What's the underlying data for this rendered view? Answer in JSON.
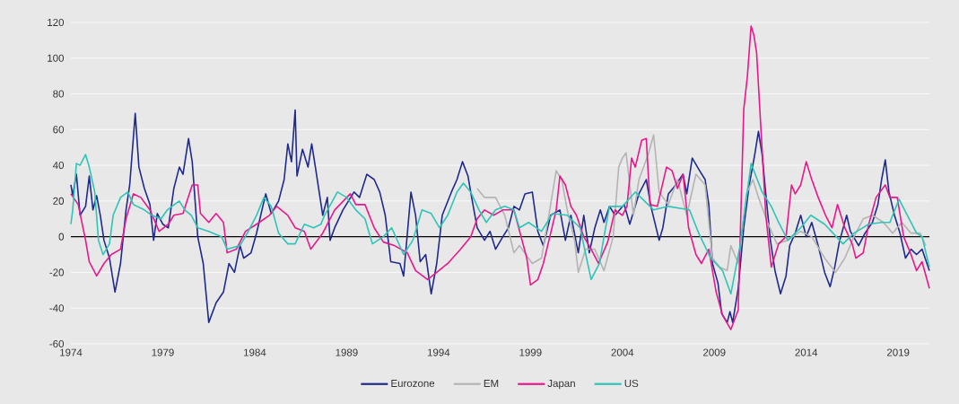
{
  "chart_data": {
    "type": "line",
    "xlim": [
      1974,
      2020.7
    ],
    "ylim": [
      -60,
      120
    ],
    "xticks": [
      1974,
      1979,
      1984,
      1989,
      1994,
      1999,
      2004,
      2009,
      2014,
      2019
    ],
    "yticks": [
      -60,
      -40,
      -20,
      0,
      20,
      40,
      60,
      80,
      100,
      120
    ],
    "grid": "y",
    "legend": "bottom",
    "marker": "none",
    "line_style": "solid",
    "ref_lines": [
      {
        "axis": "y",
        "value": 0,
        "color": "#000000"
      }
    ],
    "series": [
      {
        "name": "Eurozone",
        "color": "#1f2a8a",
        "x": [
          1974.0,
          1974.1,
          1974.3,
          1974.5,
          1974.8,
          1975.0,
          1975.2,
          1975.4,
          1975.6,
          1975.8,
          1976.1,
          1976.4,
          1976.7,
          1977.0,
          1977.2,
          1977.5,
          1977.7,
          1978.0,
          1978.3,
          1978.5,
          1978.7,
          1979.0,
          1979.3,
          1979.6,
          1979.9,
          1980.1,
          1980.4,
          1980.6,
          1980.9,
          1981.2,
          1981.5,
          1981.9,
          1982.3,
          1982.6,
          1982.9,
          1983.2,
          1983.4,
          1983.8,
          1984.1,
          1984.6,
          1984.9,
          1985.3,
          1985.6,
          1985.8,
          1986.0,
          1986.2,
          1986.3,
          1986.6,
          1986.9,
          1987.1,
          1987.3,
          1987.7,
          1987.95,
          1988.1,
          1988.35,
          1988.8,
          1989.4,
          1989.7,
          1990.1,
          1990.5,
          1990.8,
          1991.1,
          1991.4,
          1991.9,
          1992.1,
          1992.5,
          1992.75,
          1993.0,
          1993.3,
          1993.6,
          1993.9,
          1994.2,
          1994.7,
          1995.0,
          1995.3,
          1995.6,
          1995.8,
          1996.1,
          1996.5,
          1996.8,
          1997.1,
          1997.5,
          1997.8,
          1998.1,
          1998.4,
          1998.7,
          1999.1,
          1999.4,
          1999.7,
          2000.1,
          2000.6,
          2000.9,
          2001.2,
          2001.6,
          2001.9,
          2002.2,
          2002.5,
          2002.8,
          2003.0,
          2003.3,
          2003.6,
          2004.1,
          2004.4,
          2004.9,
          2005.3,
          2005.55,
          2006.0,
          2006.2,
          2006.5,
          2006.9,
          2007.3,
          2007.5,
          2007.8,
          2008.2,
          2008.5,
          2008.7,
          2008.9,
          2009.2,
          2009.4,
          2009.7,
          2009.85,
          2010.0,
          2010.3,
          2010.6,
          2010.9,
          2011.2,
          2011.4,
          2011.6,
          2011.8,
          2012.05,
          2012.3,
          2012.6,
          2012.9,
          2013.1,
          2013.4,
          2013.7,
          2014.0,
          2014.3,
          2014.65,
          2015.0,
          2015.3,
          2015.55,
          2015.8,
          2016.2,
          2016.4,
          2016.85,
          2017.2,
          2017.6,
          2017.9,
          2018.1,
          2018.3,
          2018.5,
          2018.8,
          2019.1,
          2019.4,
          2019.7,
          2020.0,
          2020.3,
          2020.7
        ],
        "values": [
          29,
          23,
          35,
          12,
          17,
          34,
          15,
          23,
          12,
          -2,
          -12,
          -31,
          -15,
          15,
          29,
          69,
          39,
          27,
          18,
          -2,
          13,
          7,
          5,
          27,
          39,
          35,
          55,
          42,
          0,
          -15,
          -48,
          -37,
          -31,
          -15,
          -20,
          -5,
          -12,
          -9,
          2,
          24,
          13,
          20,
          32,
          52,
          42,
          71,
          34,
          49,
          39,
          52,
          39,
          12,
          22,
          -2,
          5,
          15,
          25,
          22,
          35,
          32,
          25,
          12,
          -14,
          -15,
          -22,
          25,
          12,
          -14,
          -10,
          -32,
          -15,
          12,
          25,
          32,
          42,
          34,
          22,
          5,
          -2,
          3,
          -7,
          0,
          5,
          17,
          15,
          24,
          25,
          3,
          -5,
          12,
          15,
          -2,
          12,
          -9,
          12,
          -9,
          5,
          15,
          8,
          17,
          12,
          18,
          7,
          24,
          32,
          17,
          -2,
          5,
          24,
          29,
          35,
          24,
          44,
          37,
          32,
          18,
          -15,
          -26,
          -43,
          -48,
          -42,
          -48,
          -29,
          5,
          29,
          46,
          59,
          46,
          24,
          -2,
          -19,
          -32,
          -22,
          -5,
          2,
          12,
          0,
          8,
          -5,
          -20,
          -28,
          -17,
          -3,
          12,
          3,
          -5,
          2,
          8,
          18,
          32,
          43,
          25,
          12,
          2,
          -12,
          -7,
          -10,
          -7,
          -19
        ]
      },
      {
        "name": "EM",
        "color": "#b4b4b4",
        "x": [
          1996.1,
          1996.5,
          1997.1,
          1997.6,
          1998.1,
          1998.4,
          1999.1,
          1999.6,
          2000.0,
          2000.4,
          2000.7,
          2001.0,
          2001.4,
          2001.6,
          2002.0,
          2002.5,
          2003.0,
          2003.5,
          2003.8,
          2004.0,
          2004.2,
          2004.6,
          2004.9,
          2005.4,
          2005.7,
          2006.0,
          2006.5,
          2007.0,
          2007.5,
          2008.0,
          2008.5,
          2008.9,
          2009.3,
          2009.7,
          2009.9,
          2010.3,
          2010.75,
          2011.1,
          2011.4,
          2011.9,
          2012.4,
          2013.0,
          2013.7,
          2014.3,
          2015.0,
          2015.6,
          2016.1,
          2016.6,
          2017.1,
          2017.6,
          2018.2,
          2018.7,
          2019.2,
          2019.7,
          2020.2,
          2020.5
        ],
        "values": [
          27,
          22,
          22,
          12,
          -9,
          -5,
          -15,
          -12,
          12,
          37,
          32,
          15,
          -2,
          -20,
          -7,
          -7,
          -19,
          0,
          39,
          44,
          47,
          12,
          32,
          46,
          57,
          25,
          18,
          32,
          12,
          35,
          29,
          -12,
          -17,
          -19,
          -5,
          -15,
          24,
          32,
          22,
          8,
          -4,
          -2,
          3,
          0,
          -12,
          -20,
          -12,
          0,
          10,
          12,
          8,
          2,
          8,
          2,
          2,
          -5
        ]
      },
      {
        "name": "Japan",
        "color": "#e6198c",
        "x": [
          1974.0,
          1974.4,
          1974.8,
          1975.0,
          1975.4,
          1975.8,
          1976.2,
          1976.7,
          1977.0,
          1977.4,
          1977.8,
          1978.3,
          1978.8,
          1979.3,
          1979.6,
          1980.1,
          1980.6,
          1980.9,
          1981.05,
          1981.5,
          1981.9,
          1982.3,
          1982.5,
          1983.0,
          1983.5,
          1984.1,
          1984.8,
          1985.2,
          1985.8,
          1986.2,
          1986.7,
          1987.05,
          1987.7,
          1988.35,
          1989.2,
          1989.5,
          1990.0,
          1990.5,
          1991.0,
          1991.6,
          1992.3,
          1992.75,
          1993.4,
          1993.9,
          1994.5,
          1995.2,
          1995.75,
          1996.1,
          1996.5,
          1997.0,
          1997.5,
          1998.1,
          1998.8,
          1999.0,
          1999.4,
          1999.7,
          2000.1,
          2000.4,
          2000.6,
          2000.9,
          2001.2,
          2001.5,
          2001.9,
          2002.3,
          2002.7,
          2003.2,
          2003.6,
          2004.0,
          2004.25,
          2004.5,
          2004.7,
          2005.05,
          2005.3,
          2005.5,
          2005.9,
          2006.4,
          2006.7,
          2007.0,
          2007.3,
          2007.6,
          2008.0,
          2008.3,
          2008.7,
          2009.1,
          2009.45,
          2009.9,
          2010.3,
          2010.6,
          2010.8,
          2011.0,
          2011.15,
          2011.3,
          2011.6,
          2011.8,
          2012.1,
          2012.5,
          2012.9,
          2013.2,
          2013.4,
          2013.7,
          2014.0,
          2014.3,
          2014.65,
          2015.05,
          2015.4,
          2015.7,
          2016.1,
          2016.5,
          2016.7,
          2017.1,
          2017.4,
          2017.8,
          2018.3,
          2018.55,
          2018.95,
          2019.3,
          2019.7,
          2020.0,
          2020.3,
          2020.7
        ],
        "values": [
          24,
          18,
          -2,
          -14,
          -22,
          -15,
          -10,
          -7,
          10,
          24,
          22,
          15,
          3,
          7,
          12,
          13,
          29,
          29,
          13,
          8,
          13,
          8,
          -9,
          -7,
          3,
          7,
          12,
          17,
          12,
          5,
          3,
          -7,
          2,
          15,
          24,
          18,
          18,
          5,
          -3,
          -5,
          -9,
          -19,
          -24,
          -20,
          -15,
          -7,
          0,
          10,
          15,
          12,
          15,
          15,
          -12,
          -27,
          -24,
          -15,
          2,
          15,
          34,
          29,
          17,
          12,
          0,
          -7,
          -15,
          -3,
          15,
          12,
          17,
          44,
          39,
          54,
          55,
          18,
          17,
          39,
          37,
          27,
          35,
          5,
          -10,
          -15,
          -7,
          -31,
          -44,
          -52,
          -41,
          71,
          90,
          118,
          113,
          103,
          49,
          12,
          -17,
          -4,
          0,
          29,
          24,
          29,
          42,
          32,
          22,
          12,
          5,
          18,
          5,
          -4,
          -12,
          -9,
          7,
          22,
          29,
          22,
          22,
          0,
          -10,
          -19,
          -14,
          -29
        ]
      },
      {
        "name": "US",
        "color": "#2ec4b6",
        "x": [
          1974.0,
          1974.1,
          1974.3,
          1974.5,
          1974.8,
          1975.0,
          1975.3,
          1975.5,
          1975.75,
          1976.1,
          1976.3,
          1976.7,
          1977.1,
          1977.4,
          1978.0,
          1978.4,
          1978.9,
          1979.25,
          1979.5,
          1979.9,
          1980.2,
          1980.55,
          1980.9,
          1981.5,
          1982.2,
          1982.5,
          1983.2,
          1983.6,
          1984.1,
          1984.5,
          1984.9,
          1985.3,
          1985.8,
          1986.2,
          1986.7,
          1987.2,
          1987.6,
          1987.8,
          1988.5,
          1989.0,
          1989.5,
          1990.0,
          1990.4,
          1991.0,
          1991.45,
          1992.1,
          1992.6,
          1993.1,
          1993.6,
          1994.05,
          1994.5,
          1995.0,
          1995.35,
          1995.75,
          1996.2,
          1996.6,
          1997.1,
          1997.6,
          1998.1,
          1998.4,
          1998.9,
          1999.6,
          2000.2,
          2001.0,
          2001.7,
          2002.3,
          2002.75,
          2003.0,
          2003.3,
          2004.0,
          2004.7,
          2005.7,
          2006.5,
          2007.65,
          2008.15,
          2008.8,
          2009.45,
          2009.9,
          2010.4,
          2011.0,
          2011.6,
          2012.1,
          2012.5,
          2013.0,
          2013.7,
          2014.25,
          2015.0,
          2016.0,
          2016.6,
          2017.4,
          2018.1,
          2018.55,
          2019.05,
          2019.5,
          2020.0,
          2020.3,
          2020.7
        ],
        "values": [
          7,
          15,
          41,
          40,
          46,
          39,
          25,
          -2,
          -10,
          -4,
          12,
          22,
          25,
          18,
          15,
          12,
          10,
          15,
          17,
          20,
          15,
          12,
          5,
          3,
          0,
          -7,
          -5,
          2,
          12,
          22,
          17,
          2,
          -4,
          -4,
          7,
          5,
          7,
          12,
          25,
          22,
          15,
          10,
          -4,
          0,
          5,
          -10,
          -2,
          15,
          13,
          5,
          12,
          25,
          30,
          25,
          15,
          8,
          15,
          17,
          15,
          5,
          8,
          3,
          13,
          12,
          5,
          -24,
          -15,
          0,
          17,
          17,
          25,
          15,
          17,
          15,
          2,
          -12,
          -19,
          -32,
          -5,
          41,
          25,
          17,
          8,
          -2,
          5,
          12,
          7,
          -4,
          2,
          7,
          8,
          8,
          21,
          12,
          2,
          0,
          -17
        ]
      }
    ]
  }
}
